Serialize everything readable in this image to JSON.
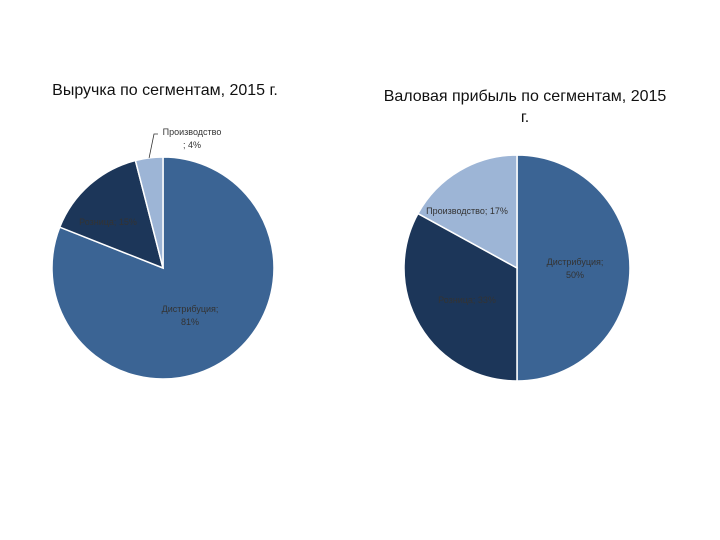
{
  "chart_data": [
    {
      "type": "pie",
      "title": "Выручка по сегментам, 2015 г.",
      "slices": [
        {
          "name": "Дистрибуция",
          "value": 81,
          "label_lines": [
            "Дистрибуция;",
            "81%"
          ],
          "color": "#3b6494"
        },
        {
          "name": "Розница",
          "value": 15,
          "label_lines": [
            "Розница; 15%"
          ],
          "color": "#1c3659"
        },
        {
          "name": "Производство",
          "value": 4,
          "label_lines": [
            "Производство",
            "; 4%"
          ],
          "color": "#9db5d6"
        }
      ]
    },
    {
      "type": "pie",
      "title": "Валовая прибыль по сегментам, 2015 г.",
      "slices": [
        {
          "name": "Дистрибуция",
          "value": 50,
          "label_lines": [
            "Дистрибуция;",
            "50%"
          ],
          "color": "#3b6494"
        },
        {
          "name": "Розница",
          "value": 33,
          "label_lines": [
            "Розница; 33%"
          ],
          "color": "#1c3659"
        },
        {
          "name": "Производство",
          "value": 17,
          "label_lines": [
            "Производство; 17%"
          ],
          "color": "#9db5d6"
        }
      ]
    }
  ]
}
